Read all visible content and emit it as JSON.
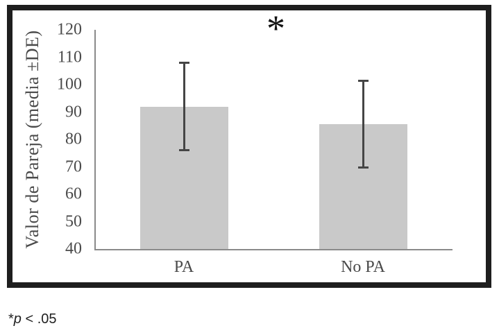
{
  "figure": {
    "border_color": "#1e1e1e",
    "background_color": "#ffffff"
  },
  "chart_data": {
    "type": "bar",
    "categories": [
      "PA",
      "No PA"
    ],
    "values": [
      92,
      85.5
    ],
    "error_bars": {
      "upper": [
        108,
        101.5
      ],
      "lower": [
        76,
        69.5
      ]
    },
    "title": "",
    "xlabel": "",
    "ylabel": "Valor de Pareja (media ±DE)",
    "ylim": [
      40,
      120
    ],
    "yticks": [
      40,
      50,
      60,
      70,
      80,
      90,
      100,
      110,
      120
    ],
    "grid": false,
    "legend_position": "none",
    "significance_marker": "*",
    "bar_color": "#c9c9c9",
    "error_bar_color": "#454545",
    "axis_color": "#8a8a8a",
    "text_color": "#4a4a4a",
    "marker_color": "#141414"
  },
  "footnote": {
    "marker": "*",
    "stat_symbol": "p",
    "comparison": " < .05",
    "color": "#1f1f1f"
  }
}
